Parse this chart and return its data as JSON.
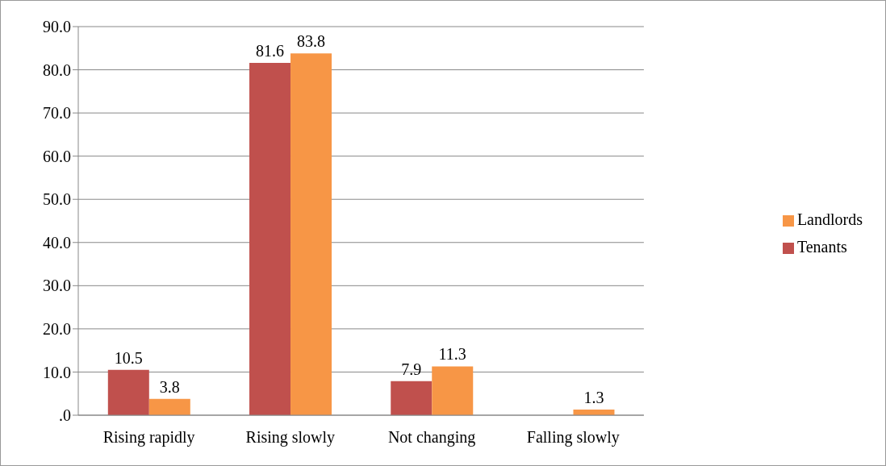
{
  "chart_data": {
    "type": "bar",
    "categories": [
      "Rising rapidly",
      "Rising slowly",
      "Not changing",
      "Falling slowly"
    ],
    "series": [
      {
        "name": "Tenants",
        "color": "#c0504d",
        "values": [
          10.5,
          81.6,
          7.9,
          null
        ]
      },
      {
        "name": "Landlords",
        "color": "#f79646",
        "values": [
          3.8,
          83.8,
          11.3,
          1.3
        ]
      }
    ],
    "ylim": [
      0,
      90
    ],
    "yticks": [
      {
        "value": 0,
        "label": ".0"
      },
      {
        "value": 10,
        "label": "10.0"
      },
      {
        "value": 20,
        "label": "20.0"
      },
      {
        "value": 30,
        "label": "30.0"
      },
      {
        "value": 40,
        "label": "40.0"
      },
      {
        "value": 50,
        "label": "50.0"
      },
      {
        "value": 60,
        "label": "60.0"
      },
      {
        "value": 70,
        "label": "70.0"
      },
      {
        "value": 80,
        "label": "80.0"
      },
      {
        "value": 90,
        "label": "90.0"
      }
    ],
    "grid": "y",
    "legend": "right",
    "data_labels": true
  }
}
